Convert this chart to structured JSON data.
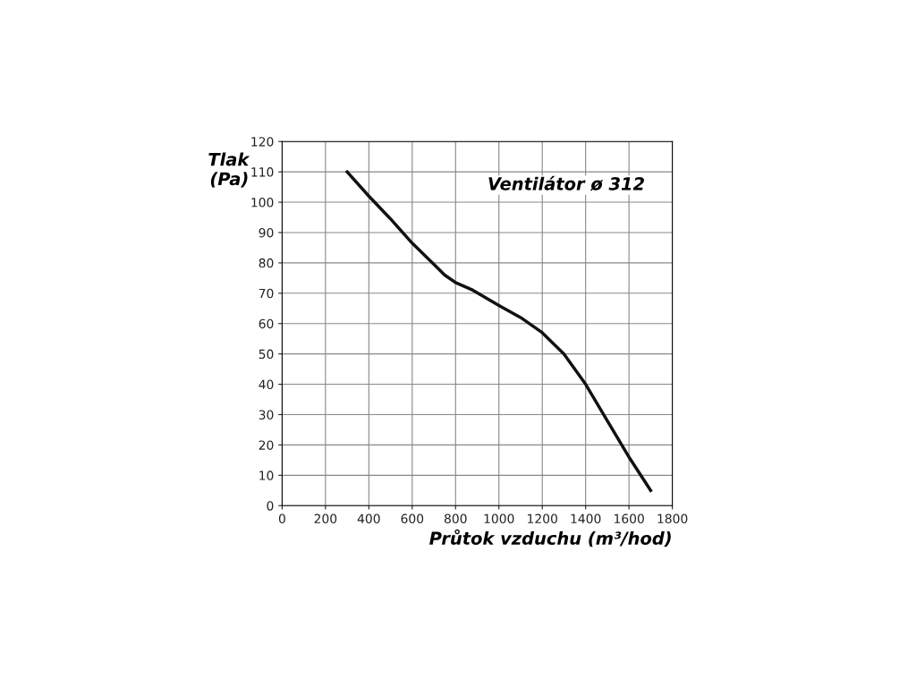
{
  "chart_data": {
    "type": "line",
    "xlabel": "Průtok vzduchu (m³/hod)",
    "ylabel": "Tlak\n(Pa)",
    "annotations": [
      "Ventilátor ø 312"
    ],
    "x": [
      300,
      400,
      500,
      600,
      700,
      750,
      800,
      880,
      1000,
      1100,
      1200,
      1300,
      1400,
      1500,
      1600,
      1700
    ],
    "series": [
      {
        "color": "#111111",
        "values": [
          110,
          102,
          94.5,
          86.5,
          79.5,
          76,
          73.5,
          71,
          66,
          62,
          57,
          50,
          40,
          28,
          16,
          5
        ]
      }
    ],
    "xlim": [
      0,
      1800
    ],
    "xticks": [
      0,
      200,
      400,
      600,
      800,
      1000,
      1200,
      1400,
      1600,
      1800
    ],
    "ylim": [
      0,
      120
    ],
    "yticks": [
      0,
      10,
      20,
      30,
      40,
      50,
      60,
      70,
      80,
      90,
      100,
      110,
      120
    ],
    "grid": true,
    "marker": "none",
    "line_style": "solid"
  }
}
